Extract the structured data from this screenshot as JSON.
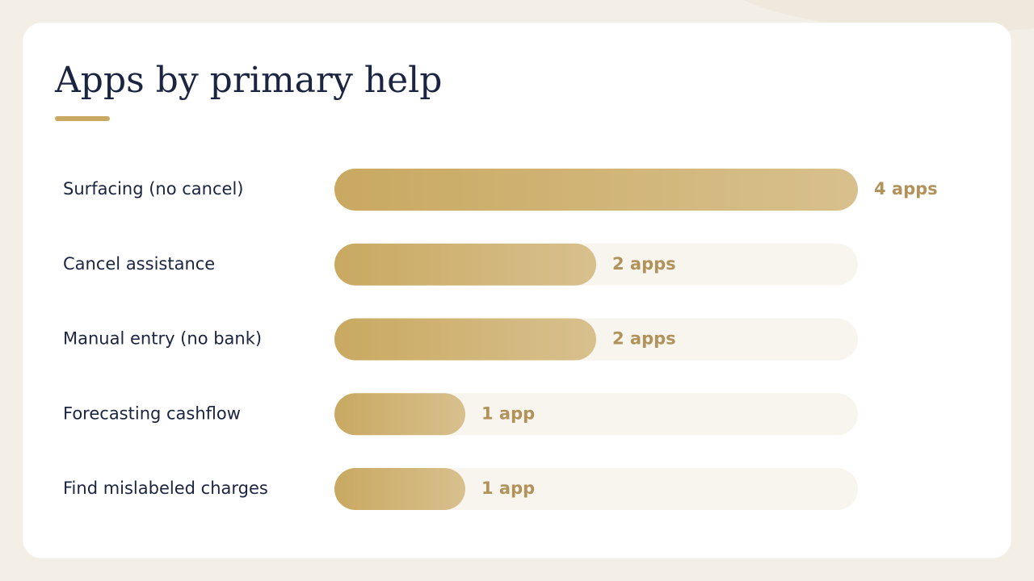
{
  "chart_data": {
    "type": "bar",
    "orientation": "horizontal",
    "title": "Apps by primary help",
    "categories": [
      "Surfacing (no cancel)",
      "Cancel assistance",
      "Manual entry (no bank)",
      "Forecasting cashflow",
      "Find mislabeled charges"
    ],
    "values": [
      4,
      2,
      2,
      1,
      1
    ],
    "value_labels": [
      "4 apps",
      "2 apps",
      "2 apps",
      "1 app",
      "1 app"
    ],
    "color": "#c9a961"
  }
}
